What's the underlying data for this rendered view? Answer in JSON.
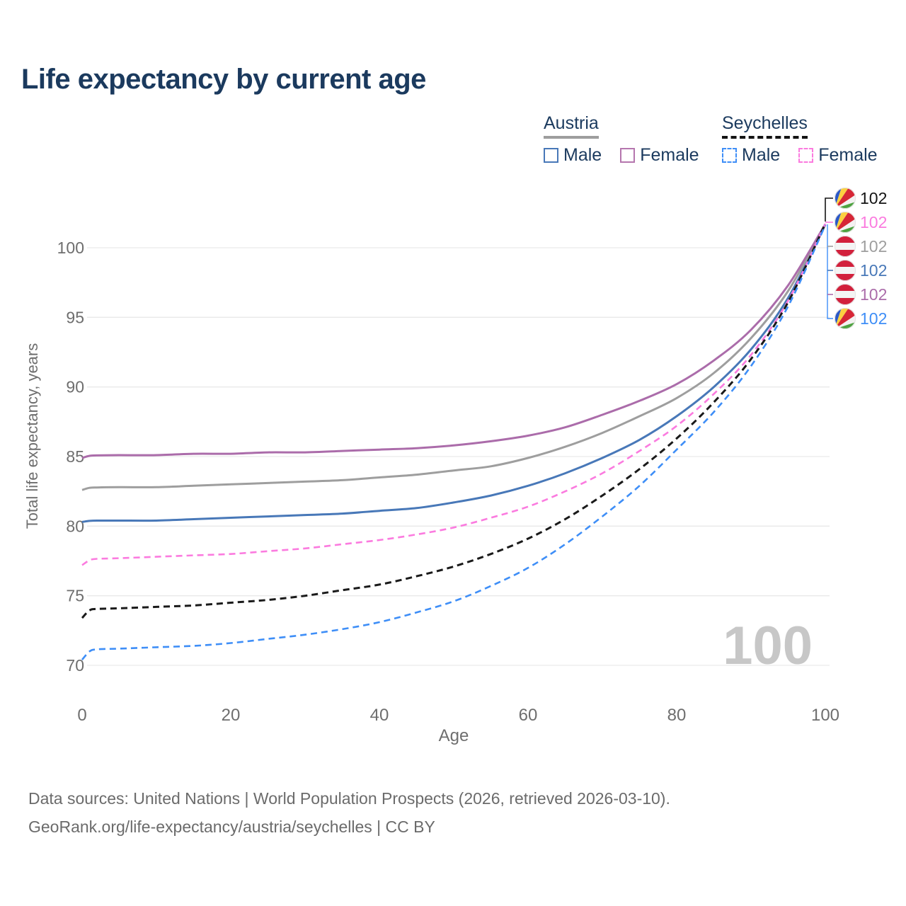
{
  "title": "Life expectancy by current age",
  "watermark": "100",
  "legend": {
    "groups": [
      {
        "name": "Austria",
        "underline_color": "#9e9e9e",
        "underline_style": "solid",
        "items": [
          {
            "label": "Male",
            "color": "#4878b8",
            "dash": false
          },
          {
            "label": "Female",
            "color": "#b576ae",
            "dash": false
          }
        ]
      },
      {
        "name": "Seychelles",
        "underline_color": "#141414",
        "underline_style": "dashed",
        "items": [
          {
            "label": "Male",
            "color": "#3e8ef7",
            "dash": true
          },
          {
            "label": "Female",
            "color": "#fb7bdf",
            "dash": true
          }
        ]
      }
    ]
  },
  "axes": {
    "y_title": "Total life expectancy, years",
    "x_title": "Age",
    "y_ticks": [
      "70",
      "75",
      "80",
      "85",
      "90",
      "95",
      "100"
    ],
    "x_ticks": [
      "0",
      "20",
      "40",
      "60",
      "80",
      "100"
    ]
  },
  "chart_data": {
    "type": "line",
    "title": "Life expectancy by current age",
    "xlabel": "Age",
    "ylabel": "Total life expectancy, years",
    "xlim": [
      0,
      100
    ],
    "ylim": [
      70,
      100
    ],
    "grid": true,
    "legend_position": "top-right",
    "x": [
      0,
      1,
      2,
      5,
      10,
      15,
      20,
      25,
      30,
      35,
      40,
      45,
      50,
      55,
      60,
      65,
      70,
      75,
      80,
      85,
      90,
      95,
      100
    ],
    "series": [
      {
        "id": "austria-male",
        "name": "Austria Male",
        "country": "austria",
        "color": "#4878b8",
        "dash": false,
        "width": 3,
        "values": [
          80.3,
          80.38,
          80.4,
          80.4,
          80.4,
          80.5,
          80.6,
          80.7,
          80.8,
          80.9,
          81.1,
          81.3,
          81.7,
          82.2,
          82.9,
          83.8,
          84.9,
          86.2,
          87.9,
          90.0,
          92.7,
          96.4,
          101.66
        ]
      },
      {
        "id": "austria-total",
        "name": "Austria",
        "country": "austria",
        "color": "#9e9e9e",
        "dash": false,
        "width": 3,
        "values": [
          82.6,
          82.75,
          82.78,
          82.8,
          82.8,
          82.9,
          83.0,
          83.1,
          83.2,
          83.3,
          83.5,
          83.7,
          84.0,
          84.3,
          84.9,
          85.7,
          86.7,
          87.9,
          89.2,
          91.0,
          93.5,
          96.9,
          101.68
        ]
      },
      {
        "id": "austria-female",
        "name": "Austria Female",
        "country": "austria",
        "color": "#ab6caa",
        "dash": false,
        "width": 3,
        "values": [
          84.9,
          85.05,
          85.08,
          85.1,
          85.1,
          85.2,
          85.2,
          85.3,
          85.3,
          85.4,
          85.5,
          85.6,
          85.8,
          86.1,
          86.5,
          87.1,
          88.0,
          89.0,
          90.2,
          91.9,
          94.1,
          97.3,
          101.7
        ]
      },
      {
        "id": "seychelles-female",
        "name": "Seychelles Female",
        "country": "seychelles",
        "color": "#fb7bdf",
        "dash": true,
        "width": 2.6,
        "values": [
          77.2,
          77.55,
          77.65,
          77.7,
          77.8,
          77.9,
          78.0,
          78.2,
          78.4,
          78.7,
          79.0,
          79.4,
          79.9,
          80.6,
          81.4,
          82.5,
          83.8,
          85.4,
          87.2,
          89.5,
          92.3,
          96.2,
          101.72
        ]
      },
      {
        "id": "seychelles-total",
        "name": "Seychelles",
        "country": "seychelles",
        "color": "#1a1a1a",
        "dash": true,
        "width": 3,
        "values": [
          73.4,
          73.95,
          74.05,
          74.1,
          74.2,
          74.3,
          74.5,
          74.7,
          75.0,
          75.4,
          75.8,
          76.4,
          77.1,
          78.0,
          79.1,
          80.5,
          82.2,
          84.1,
          86.3,
          88.9,
          92.0,
          96.1,
          101.74
        ]
      },
      {
        "id": "seychelles-male",
        "name": "Seychelles Male",
        "country": "seychelles",
        "color": "#3e8ef7",
        "dash": true,
        "width": 2.6,
        "values": [
          70.4,
          71.0,
          71.15,
          71.2,
          71.3,
          71.4,
          71.6,
          71.9,
          72.2,
          72.6,
          73.1,
          73.8,
          74.6,
          75.7,
          77.0,
          78.7,
          80.7,
          82.9,
          85.5,
          88.2,
          91.5,
          95.8,
          101.62
        ]
      }
    ]
  },
  "end_labels": [
    {
      "value": "102",
      "color": "#141414",
      "flag": "seychelles",
      "series": "Seychelles"
    },
    {
      "value": "102",
      "color": "#fb7bdf",
      "flag": "seychelles",
      "series": "Seychelles Female"
    },
    {
      "value": "102",
      "color": "#9e9e9e",
      "flag": "austria",
      "series": "Austria"
    },
    {
      "value": "102",
      "color": "#4878b8",
      "flag": "austria",
      "series": "Austria Male"
    },
    {
      "value": "102",
      "color": "#ab6caa",
      "flag": "austria",
      "series": "Austria Female"
    },
    {
      "value": "102",
      "color": "#3e8ef7",
      "flag": "seychelles",
      "series": "Seychelles Male"
    }
  ],
  "flag_colors": {
    "austria": {
      "red": "#d2203c",
      "white": "#f4f4f4"
    },
    "seychelles": {
      "blue": "#2b58c8",
      "yellow": "#fcd040",
      "red": "#d62636",
      "white": "#f4f2f2",
      "green": "#4da23f"
    }
  },
  "style_colors": {
    "title": "#1b3a5e",
    "axis_text": "#6e6e6e",
    "gridline": "#e9e9e9",
    "watermark": "#c7c7c7"
  },
  "footer": {
    "line1": "Data sources: United Nations | World Population Prospects (2026, retrieved 2026-03-10).",
    "line2": "GeoRank.org/life-expectancy/austria/seychelles | CC BY"
  }
}
